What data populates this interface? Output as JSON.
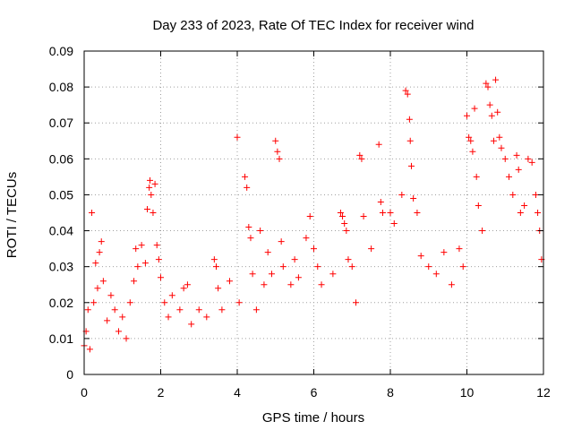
{
  "chart_data": {
    "type": "scatter",
    "title": "Day 233 of 2023, Rate Of TEC Index for receiver wind",
    "xlabel": "GPS time / hours",
    "ylabel": "ROTI / TECUs",
    "xlim": [
      0,
      12
    ],
    "ylim": [
      0,
      0.09
    ],
    "xticks": [
      0,
      2,
      4,
      6,
      8,
      10,
      12
    ],
    "yticks": [
      0,
      0.01,
      0.02,
      0.03,
      0.04,
      0.05,
      0.06,
      0.07,
      0.08,
      0.09
    ],
    "ytick_labels": [
      "0",
      "0.01",
      "0.02",
      "0.03",
      "0.04",
      "0.05",
      "0.06",
      "0.07",
      "0.08",
      "0.09"
    ],
    "grid": true,
    "marker": "+",
    "series": [
      {
        "color": "#ff0000",
        "points": [
          [
            0.0,
            0.008
          ],
          [
            0.05,
            0.012
          ],
          [
            0.1,
            0.018
          ],
          [
            0.15,
            0.007
          ],
          [
            0.2,
            0.045
          ],
          [
            0.25,
            0.02
          ],
          [
            0.3,
            0.031
          ],
          [
            0.35,
            0.024
          ],
          [
            0.4,
            0.034
          ],
          [
            0.45,
            0.037
          ],
          [
            0.5,
            0.026
          ],
          [
            0.6,
            0.015
          ],
          [
            0.7,
            0.022
          ],
          [
            0.8,
            0.018
          ],
          [
            0.9,
            0.012
          ],
          [
            1.0,
            0.016
          ],
          [
            1.1,
            0.01
          ],
          [
            1.2,
            0.02
          ],
          [
            1.3,
            0.026
          ],
          [
            1.35,
            0.035
          ],
          [
            1.4,
            0.03
          ],
          [
            1.5,
            0.036
          ],
          [
            1.6,
            0.031
          ],
          [
            1.65,
            0.046
          ],
          [
            1.7,
            0.052
          ],
          [
            1.72,
            0.054
          ],
          [
            1.75,
            0.05
          ],
          [
            1.8,
            0.045
          ],
          [
            1.85,
            0.053
          ],
          [
            1.9,
            0.036
          ],
          [
            1.95,
            0.032
          ],
          [
            2.0,
            0.027
          ],
          [
            2.1,
            0.02
          ],
          [
            2.2,
            0.016
          ],
          [
            2.3,
            0.022
          ],
          [
            2.5,
            0.018
          ],
          [
            2.6,
            0.024
          ],
          [
            2.7,
            0.025
          ],
          [
            2.8,
            0.014
          ],
          [
            3.0,
            0.018
          ],
          [
            3.2,
            0.016
          ],
          [
            3.4,
            0.032
          ],
          [
            3.45,
            0.03
          ],
          [
            3.5,
            0.024
          ],
          [
            3.6,
            0.018
          ],
          [
            3.8,
            0.026
          ],
          [
            4.0,
            0.066
          ],
          [
            4.05,
            0.02
          ],
          [
            4.2,
            0.055
          ],
          [
            4.25,
            0.052
          ],
          [
            4.3,
            0.041
          ],
          [
            4.35,
            0.038
          ],
          [
            4.4,
            0.028
          ],
          [
            4.5,
            0.018
          ],
          [
            4.6,
            0.04
          ],
          [
            4.7,
            0.025
          ],
          [
            4.8,
            0.034
          ],
          [
            4.9,
            0.028
          ],
          [
            5.0,
            0.065
          ],
          [
            5.05,
            0.062
          ],
          [
            5.1,
            0.06
          ],
          [
            5.15,
            0.037
          ],
          [
            5.2,
            0.03
          ],
          [
            5.4,
            0.025
          ],
          [
            5.5,
            0.032
          ],
          [
            5.6,
            0.027
          ],
          [
            5.8,
            0.038
          ],
          [
            5.9,
            0.044
          ],
          [
            6.0,
            0.035
          ],
          [
            6.1,
            0.03
          ],
          [
            6.2,
            0.025
          ],
          [
            6.5,
            0.028
          ],
          [
            6.7,
            0.045
          ],
          [
            6.75,
            0.044
          ],
          [
            6.8,
            0.042
          ],
          [
            6.85,
            0.04
          ],
          [
            6.9,
            0.032
          ],
          [
            7.0,
            0.03
          ],
          [
            7.1,
            0.02
          ],
          [
            7.2,
            0.061
          ],
          [
            7.25,
            0.06
          ],
          [
            7.3,
            0.044
          ],
          [
            7.5,
            0.035
          ],
          [
            7.7,
            0.064
          ],
          [
            7.75,
            0.048
          ],
          [
            7.8,
            0.045
          ],
          [
            8.0,
            0.045
          ],
          [
            8.1,
            0.042
          ],
          [
            8.3,
            0.05
          ],
          [
            8.4,
            0.079
          ],
          [
            8.45,
            0.078
          ],
          [
            8.5,
            0.071
          ],
          [
            8.52,
            0.065
          ],
          [
            8.55,
            0.058
          ],
          [
            8.6,
            0.049
          ],
          [
            8.7,
            0.045
          ],
          [
            8.8,
            0.033
          ],
          [
            9.0,
            0.03
          ],
          [
            9.2,
            0.028
          ],
          [
            9.4,
            0.034
          ],
          [
            9.6,
            0.025
          ],
          [
            9.8,
            0.035
          ],
          [
            9.9,
            0.03
          ],
          [
            10.0,
            0.072
          ],
          [
            10.05,
            0.066
          ],
          [
            10.1,
            0.065
          ],
          [
            10.15,
            0.062
          ],
          [
            10.2,
            0.074
          ],
          [
            10.25,
            0.055
          ],
          [
            10.3,
            0.047
          ],
          [
            10.4,
            0.04
          ],
          [
            10.5,
            0.081
          ],
          [
            10.55,
            0.08
          ],
          [
            10.6,
            0.075
          ],
          [
            10.65,
            0.072
          ],
          [
            10.7,
            0.065
          ],
          [
            10.75,
            0.082
          ],
          [
            10.8,
            0.073
          ],
          [
            10.85,
            0.066
          ],
          [
            10.9,
            0.063
          ],
          [
            11.0,
            0.06
          ],
          [
            11.1,
            0.055
          ],
          [
            11.2,
            0.05
          ],
          [
            11.3,
            0.061
          ],
          [
            11.35,
            0.057
          ],
          [
            11.4,
            0.045
          ],
          [
            11.5,
            0.047
          ],
          [
            11.6,
            0.06
          ],
          [
            11.7,
            0.059
          ],
          [
            11.8,
            0.05
          ],
          [
            11.85,
            0.045
          ],
          [
            11.9,
            0.04
          ],
          [
            11.95,
            0.032
          ]
        ]
      }
    ]
  }
}
